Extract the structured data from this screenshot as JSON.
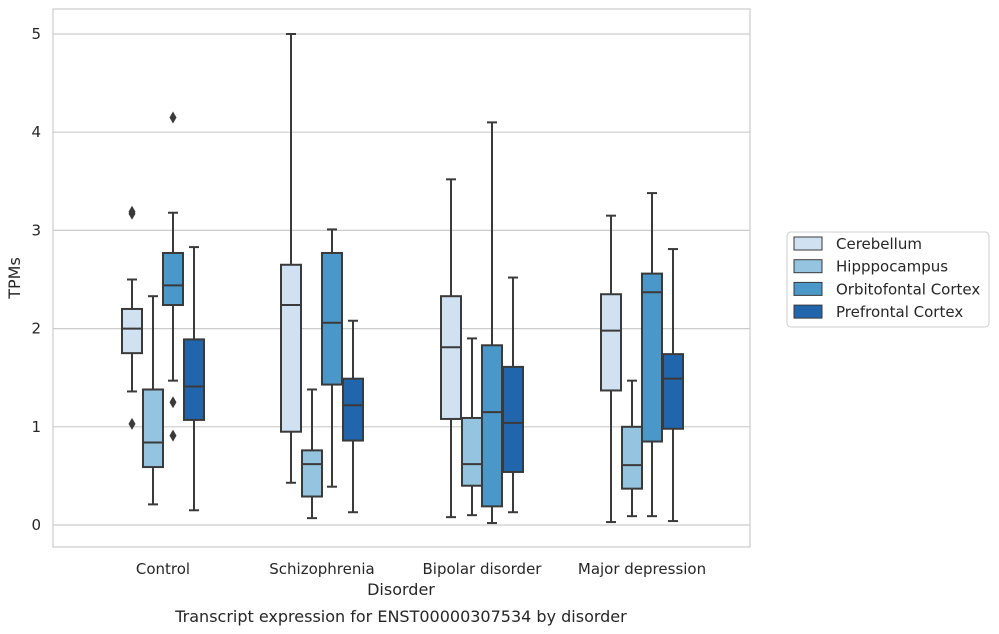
{
  "chart_data": {
    "type": "box",
    "title": "Transcript expression for ENST00000307534 by disorder",
    "xlabel": "Disorder",
    "ylabel": "TPMs",
    "ylim": [
      -0.23,
      5.25
    ],
    "yticks": [
      0,
      1,
      2,
      3,
      4,
      5
    ],
    "grid": "horizontal",
    "legend_position": "right",
    "categories": [
      "Control",
      "Schizophrenia",
      "Bipolar disorder",
      "Major depression"
    ],
    "series": [
      {
        "name": "Cerebellum",
        "color": "#d0e1f2",
        "boxes": [
          {
            "whislo": 1.36,
            "q1": 1.75,
            "med": 2.0,
            "q3": 2.2,
            "whishi": 2.5,
            "fliers": [
              1.03,
              3.17,
              3.19
            ]
          },
          {
            "whislo": 0.43,
            "q1": 0.95,
            "med": 2.24,
            "q3": 2.65,
            "whishi": 5.0,
            "fliers": []
          },
          {
            "whislo": 0.08,
            "q1": 1.08,
            "med": 1.81,
            "q3": 2.33,
            "whishi": 3.52,
            "fliers": []
          },
          {
            "whislo": 0.03,
            "q1": 1.37,
            "med": 1.98,
            "q3": 2.35,
            "whishi": 3.15,
            "fliers": []
          }
        ]
      },
      {
        "name": "Hipppocampus",
        "color": "#94c4df",
        "boxes": [
          {
            "whislo": 0.21,
            "q1": 0.59,
            "med": 0.84,
            "q3": 1.38,
            "whishi": 2.33,
            "fliers": []
          },
          {
            "whislo": 0.07,
            "q1": 0.29,
            "med": 0.62,
            "q3": 0.76,
            "whishi": 1.38,
            "fliers": []
          },
          {
            "whislo": 0.1,
            "q1": 0.4,
            "med": 0.62,
            "q3": 1.09,
            "whishi": 1.9,
            "fliers": []
          },
          {
            "whislo": 0.09,
            "q1": 0.37,
            "med": 0.61,
            "q3": 1.0,
            "whishi": 1.47,
            "fliers": []
          }
        ]
      },
      {
        "name": "Orbitofontal Cortex",
        "color": "#4a98c9",
        "boxes": [
          {
            "whislo": 1.47,
            "q1": 2.24,
            "med": 2.44,
            "q3": 2.77,
            "whishi": 3.18,
            "fliers": [
              0.91,
              1.25,
              4.15
            ]
          },
          {
            "whislo": 0.39,
            "q1": 1.43,
            "med": 2.06,
            "q3": 2.77,
            "whishi": 3.01,
            "fliers": []
          },
          {
            "whislo": 0.02,
            "q1": 0.19,
            "med": 1.15,
            "q3": 1.83,
            "whishi": 4.1,
            "fliers": []
          },
          {
            "whislo": 0.09,
            "q1": 0.85,
            "med": 2.37,
            "q3": 2.56,
            "whishi": 3.38,
            "fliers": []
          }
        ]
      },
      {
        "name": "Prefrontal Cortex",
        "color": "#2166ac",
        "boxes": [
          {
            "whislo": 0.15,
            "q1": 1.07,
            "med": 1.41,
            "q3": 1.89,
            "whishi": 2.83,
            "fliers": []
          },
          {
            "whislo": 0.13,
            "q1": 0.86,
            "med": 1.22,
            "q3": 1.49,
            "whishi": 2.08,
            "fliers": []
          },
          {
            "whislo": 0.13,
            "q1": 0.54,
            "med": 1.04,
            "q3": 1.61,
            "whishi": 2.52,
            "fliers": []
          },
          {
            "whislo": 0.04,
            "q1": 0.98,
            "med": 1.49,
            "q3": 1.74,
            "whishi": 2.81,
            "fliers": []
          }
        ]
      }
    ]
  }
}
